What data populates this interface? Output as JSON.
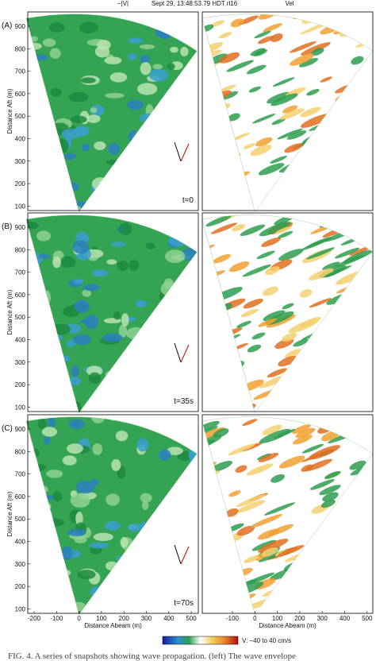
{
  "header": {
    "left_title": "−|V|",
    "center_title": "Sept 29, 13:48:53.79 HDT rl16",
    "right_title": "Vel"
  },
  "panels": [
    {
      "label": "(A)",
      "time": "t=0"
    },
    {
      "label": "(B)",
      "time": "t=35s"
    },
    {
      "label": "(C)",
      "time": "t=70s"
    }
  ],
  "axes": {
    "y_label": "Distance Aft (m)",
    "x_label": "Distance Abeam (m)",
    "y_ticks": [
      900,
      800,
      700,
      600,
      500,
      400,
      300,
      200,
      100
    ],
    "left_x_ticks": [
      -200,
      -100,
      0,
      100,
      200,
      300,
      400,
      500
    ],
    "right_x_ticks": [
      -100,
      0,
      100,
      200,
      300,
      400,
      500
    ]
  },
  "colorbar": {
    "label": "V: −40 to 40 cm/s"
  },
  "caption": "FIG. 4. A series of snapshots showing wave propagation. (left) The wave envelope"
}
